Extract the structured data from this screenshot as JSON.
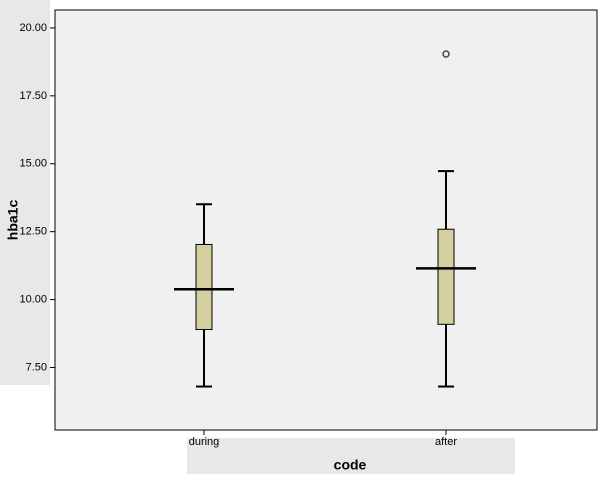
{
  "chart_data": {
    "type": "box",
    "x_label": "code",
    "y_label": "hba1c",
    "categories": [
      "during",
      "after"
    ],
    "boxes": [
      {
        "whislo": 6.8,
        "q1": 8.9,
        "med": 10.38,
        "q3": 12.03,
        "whishi": 13.51,
        "fliers": []
      },
      {
        "whislo": 6.8,
        "q1": 9.09,
        "med": 11.15,
        "q3": 12.59,
        "whishi": 14.73,
        "fliers": [
          19.04
        ]
      }
    ],
    "color": "#d4cf9e",
    "ylim": [
      5.2,
      20.66
    ],
    "yticks": [
      {
        "value": 7.5,
        "label": "7.50"
      },
      {
        "value": 10,
        "label": "10.00"
      },
      {
        "value": 12.5,
        "label": "12.50"
      },
      {
        "value": 15,
        "label": "15.00"
      },
      {
        "value": 17.5,
        "label": "17.50"
      },
      {
        "value": 20,
        "label": "20.00"
      }
    ]
  }
}
